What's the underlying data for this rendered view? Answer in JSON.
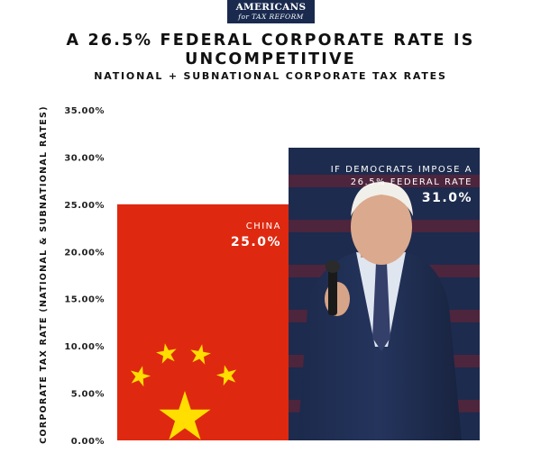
{
  "logo": {
    "line1": "AMERICANS",
    "line2": "for TAX REFORM"
  },
  "header": {
    "title": "A 26.5% FEDERAL CORPORATE RATE IS UNCOMPETITIVE",
    "subtitle": "NATIONAL + SUBNATIONAL CORPORATE TAX RATES"
  },
  "chart_data": {
    "type": "bar",
    "title": "A 26.5% FEDERAL CORPORATE RATE IS UNCOMPETITIVE",
    "subtitle": "NATIONAL + SUBNATIONAL CORPORATE TAX RATES",
    "xlabel": "",
    "ylabel": "CORPORATE TAX RATE (NATIONAL & SUBNATIONAL RATES)",
    "ylim": [
      0,
      35
    ],
    "yticks": [
      "0.00%",
      "5.00%",
      "10.00%",
      "15.00%",
      "20.00%",
      "25.00%",
      "30.00%",
      "35.00%"
    ],
    "grid": false,
    "categories": [
      "CHINA",
      "IF DEMOCRATS IMPOSE A 26.5% FEDERAL RATE"
    ],
    "category_lines": [
      [
        "CHINA"
      ],
      [
        "IF DEMOCRATS IMPOSE A",
        "26.5% FEDERAL RATE"
      ]
    ],
    "values": [
      25.0,
      31.0
    ],
    "value_labels": [
      "25.0%",
      "31.0%"
    ],
    "bar_fills": [
      "chinese-flag",
      "photo-of-speaker"
    ]
  },
  "colors": {
    "flag_red": "#de2910",
    "flag_star": "#ffde00",
    "logo_navy": "#1a2a4f",
    "photo_bg_navy": "#1d2b4e",
    "photo_stripe_red": "#7d1f2b",
    "suit": "#24345c"
  }
}
